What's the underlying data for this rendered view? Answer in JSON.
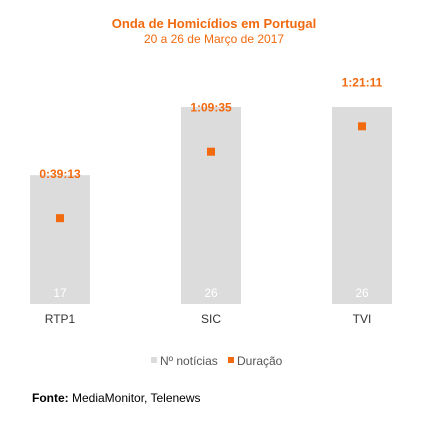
{
  "chart_data": {
    "type": "bar",
    "title": "Onda de Homicídios em Portugal",
    "subtitle": "20 a 26 de Março de 2017",
    "categories": [
      "RTP1",
      "SIC",
      "TVI"
    ],
    "series": [
      {
        "name": "Nº notícias",
        "type": "bar",
        "values": [
          17,
          26,
          26
        ],
        "labels": [
          "17",
          "26",
          "26"
        ],
        "color": "#dcdcdc"
      },
      {
        "name": "Duração",
        "type": "scatter",
        "values": [
          "0:39:13",
          "1:09:35",
          "1:21:11"
        ],
        "values_seconds": [
          2353,
          4175,
          4871
        ],
        "labels": [
          "0:39:13",
          "1:09:35",
          "1:21:11"
        ],
        "color": "#f26a0f"
      }
    ],
    "legend_position": "bottom",
    "grid": false,
    "bar_ylim": [
      0,
      26
    ],
    "duration_ylim_seconds": [
      0,
      5400
    ]
  },
  "colors": {
    "accent": "#f26a0f",
    "bar": "#dcdcdc",
    "title": "#f26a0f"
  },
  "source": {
    "label": "Fonte:",
    "text": "MediaMonitor, Telenews"
  }
}
